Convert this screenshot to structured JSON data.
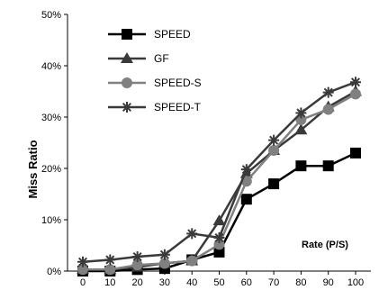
{
  "chart_data": {
    "type": "line",
    "title": "",
    "xlabel": "",
    "ylabel": "Miss Ratio",
    "annotation": "Rate (P/S)",
    "x": [
      0,
      10,
      20,
      30,
      40,
      50,
      60,
      70,
      80,
      90,
      100
    ],
    "x_tick_labels": [
      "0",
      "10",
      "20",
      "30",
      "40",
      "50",
      "60",
      "70",
      "80",
      "90",
      "100"
    ],
    "y_tick_labels": [
      "0%",
      "10%",
      "20%",
      "30%",
      "40%",
      "50%"
    ],
    "ylim": [
      0,
      50
    ],
    "grid": false,
    "legend_position": "top-left",
    "series": [
      {
        "name": "SPEED",
        "marker": "square",
        "color": "#000000",
        "values": [
          0,
          0,
          0.3,
          0.5,
          2.2,
          3.7,
          14,
          17,
          20.5,
          20.5,
          23
        ]
      },
      {
        "name": "GF",
        "marker": "triangle",
        "color": "#3a3a3a",
        "values": [
          0.3,
          0.3,
          0.8,
          1.5,
          2,
          9.8,
          19,
          23.5,
          27.5,
          32,
          35
        ]
      },
      {
        "name": "SPEED-S",
        "marker": "circle",
        "color": "#808080",
        "values": [
          0.3,
          0.3,
          1.2,
          1.5,
          2,
          5.2,
          17.5,
          23.5,
          29.5,
          31.5,
          34.5
        ]
      },
      {
        "name": "SPEED-T",
        "marker": "star",
        "color": "#3a3a3a",
        "values": [
          1.8,
          2.2,
          2.8,
          3.2,
          7.3,
          6.5,
          19.8,
          25.5,
          30.8,
          34.8,
          36.8
        ]
      }
    ]
  }
}
